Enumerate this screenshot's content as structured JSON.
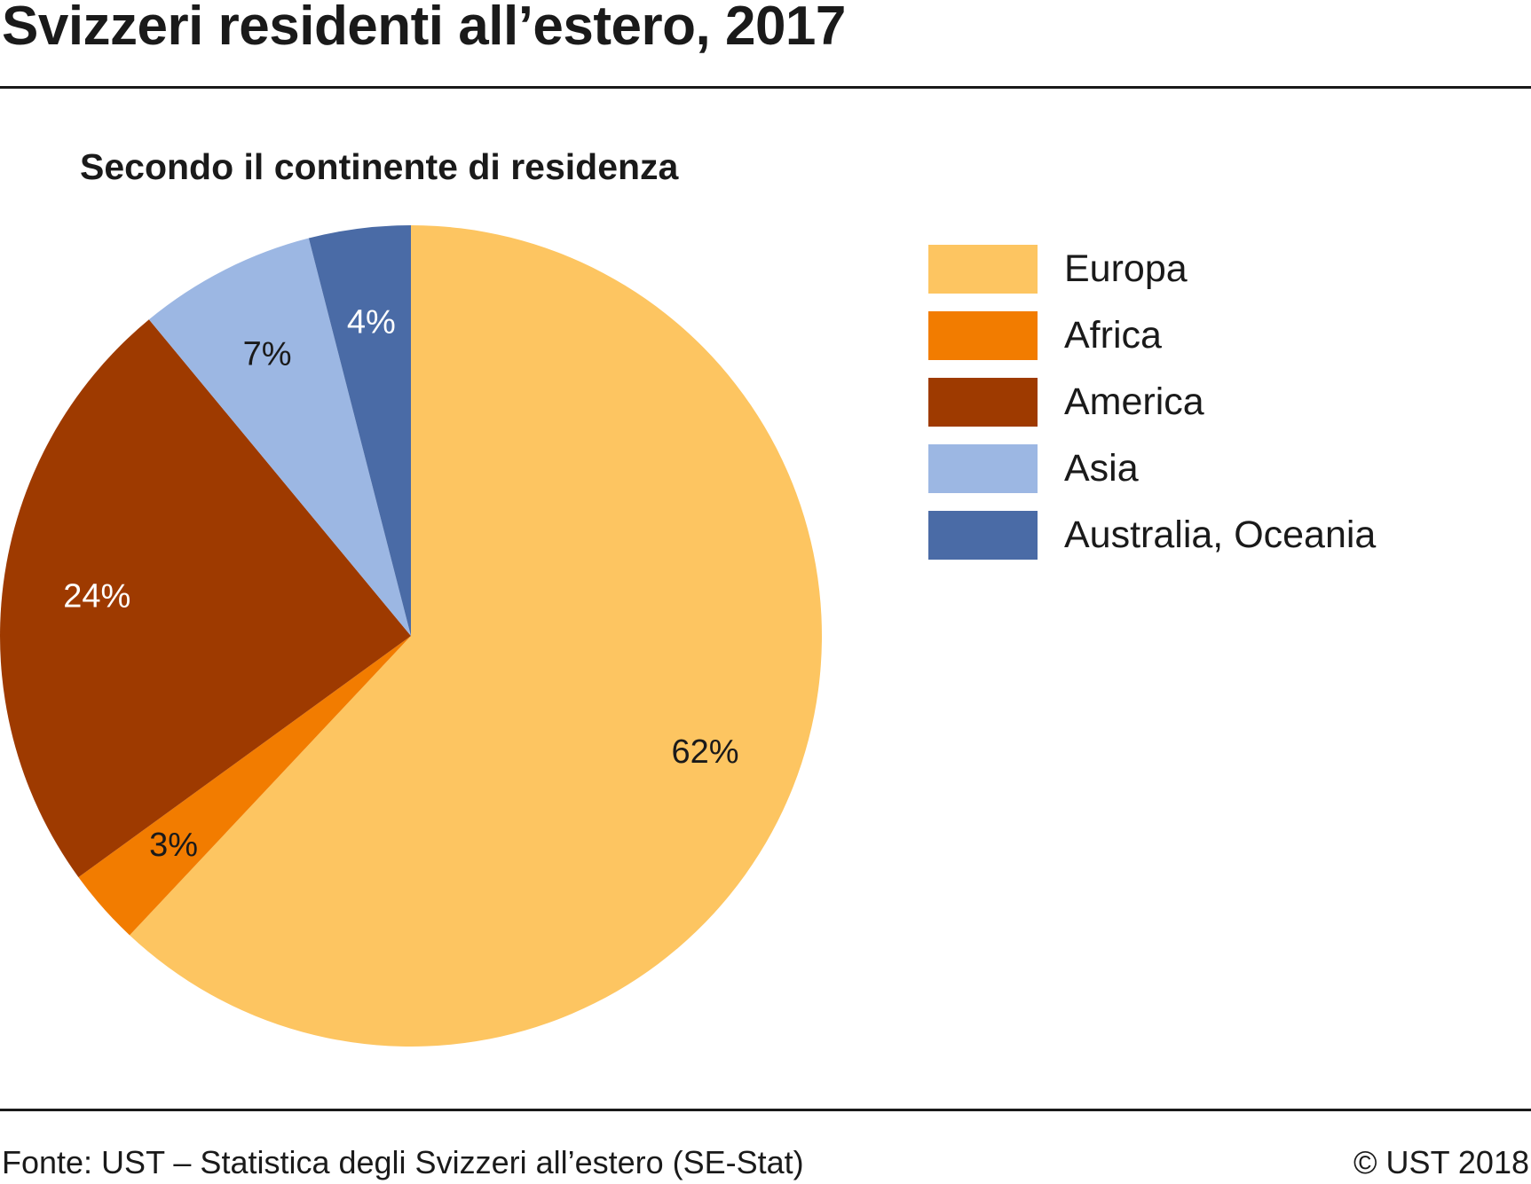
{
  "header": {
    "title": "Svizzeri residenti all’estero, 2017",
    "subtitle": "Secondo il continente di residenza"
  },
  "footer": {
    "source": "Fonte: UST – Statistica degli Svizzeri all’estero (SE-Stat)",
    "copyright": "© UST 2018"
  },
  "chart_data": {
    "type": "pie",
    "title": "Svizzeri residenti all’estero, 2017",
    "subtitle": "Secondo il continente di residenza",
    "start": "top, clockwise",
    "legend_position": "right",
    "slices": [
      {
        "name": "Europa",
        "value": 62,
        "label": "62%",
        "color": "#fdc561",
        "label_color": "#1a1a1a"
      },
      {
        "name": "Africa",
        "value": 3,
        "label": "3%",
        "color": "#f27c00",
        "label_color": "#1a1a1a"
      },
      {
        "name": "America",
        "value": 24,
        "label": "24%",
        "color": "#9e3a00",
        "label_color": "#ffffff"
      },
      {
        "name": "Asia",
        "value": 7,
        "label": "7%",
        "color": "#9cb7e3",
        "label_color": "#1a1a1a"
      },
      {
        "name": "Australia, Oceania",
        "value": 4,
        "label": "4%",
        "color": "#4a6ba6",
        "label_color": "#ffffff"
      }
    ]
  }
}
